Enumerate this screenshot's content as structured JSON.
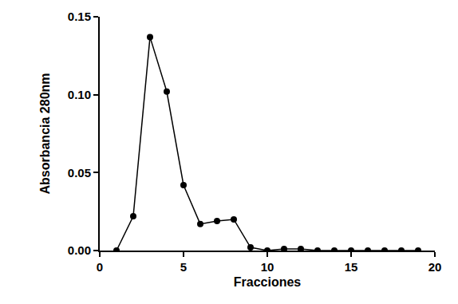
{
  "chart_data": {
    "type": "line",
    "x_label": "Fracciones",
    "y_label": "Absorbancia 280nm",
    "x": [
      1,
      2,
      3,
      4,
      5,
      6,
      7,
      8,
      9,
      10,
      11,
      12,
      13,
      14,
      15,
      16,
      17,
      18,
      19
    ],
    "values": [
      0,
      0.022,
      0.137,
      0.102,
      0.042,
      0.017,
      0.019,
      0.02,
      0.002,
      0,
      0.001,
      0.001,
      0,
      0,
      0,
      0,
      0,
      0,
      0
    ],
    "color": "#000000",
    "marker": "circle",
    "line_style": "solid",
    "xlim": [
      0,
      20
    ],
    "xticks": [
      0,
      5,
      10,
      15,
      20
    ],
    "ylim": [
      0,
      0.15
    ],
    "yticks": [
      {
        "value": 0,
        "label": "0.00"
      },
      0.05,
      {
        "value": 0.1,
        "label": "0.10"
      },
      0.15
    ],
    "grid": false
  }
}
